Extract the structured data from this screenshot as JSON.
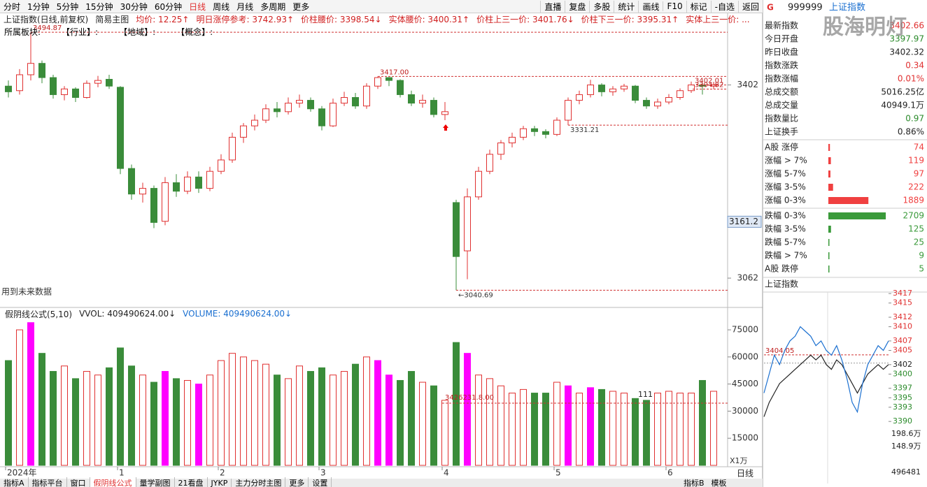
{
  "toolbar": {
    "tabs": [
      "分时",
      "1分钟",
      "5分钟",
      "15分钟",
      "30分钟",
      "60分钟",
      "日线",
      "周线",
      "月线",
      "多周期",
      "更多"
    ],
    "active_tab": 6,
    "buttons": [
      "直播",
      "复盘",
      "多股",
      "统计",
      "画线",
      "F10",
      "标记",
      "-自选",
      "返回"
    ]
  },
  "info_bar": {
    "items": [
      "上证指数(日线,前复权)",
      "简易主图",
      "均价: 12.25↑",
      "明日涨停参考: 3742.93↑",
      "价柱腰价: 3398.54↓",
      "实体腰价: 3400.31↑",
      "价柱上三一价: 3401.76↓",
      "价柱下三一价: 3395.31↑",
      "实体上三一价: ..."
    ],
    "sector": [
      "所属板块:",
      "【行业】:",
      "【地域】:",
      "【概念】:"
    ]
  },
  "future_note": "用到未来数据",
  "chart_data": [
    {
      "type": "candlestick",
      "ylim": [
        3035,
        3495
      ],
      "yticks": [
        3402,
        3062
      ],
      "crosshair": 3161.2,
      "up_color": "#e03030",
      "down_color": "#3a8c3a",
      "candles": [
        [
          3400,
          3410,
          3380,
          3390
        ],
        [
          3392,
          3430,
          3385,
          3420
        ],
        [
          3420,
          3494.87,
          3410,
          3440
        ],
        [
          3440,
          3445,
          3405,
          3415
        ],
        [
          3415,
          3420,
          3378,
          3385
        ],
        [
          3385,
          3400,
          3375,
          3395
        ],
        [
          3395,
          3398,
          3372,
          3380
        ],
        [
          3380,
          3410,
          3378,
          3405
        ],
        [
          3405,
          3418,
          3398,
          3410
        ],
        [
          3412,
          3420,
          3395,
          3400
        ],
        [
          3398,
          3400,
          3245,
          3255
        ],
        [
          3255,
          3262,
          3200,
          3210
        ],
        [
          3210,
          3230,
          3195,
          3220
        ],
        [
          3220,
          3225,
          3150,
          3160
        ],
        [
          3162,
          3240,
          3155,
          3230
        ],
        [
          3230,
          3245,
          3205,
          3215
        ],
        [
          3215,
          3250,
          3210,
          3240
        ],
        [
          3240,
          3250,
          3212,
          3220
        ],
        [
          3220,
          3258,
          3215,
          3250
        ],
        [
          3250,
          3280,
          3245,
          3270
        ],
        [
          3270,
          3318,
          3265,
          3310
        ],
        [
          3310,
          3335,
          3300,
          3330
        ],
        [
          3330,
          3350,
          3322,
          3340
        ],
        [
          3340,
          3368,
          3335,
          3360
        ],
        [
          3360,
          3372,
          3345,
          3355
        ],
        [
          3355,
          3380,
          3350,
          3370
        ],
        [
          3370,
          3385,
          3362,
          3375
        ],
        [
          3375,
          3380,
          3355,
          3360
        ],
        [
          3360,
          3365,
          3322,
          3330
        ],
        [
          3330,
          3378,
          3328,
          3370
        ],
        [
          3370,
          3390,
          3365,
          3380
        ],
        [
          3380,
          3388,
          3360,
          3365
        ],
        [
          3365,
          3405,
          3360,
          3400
        ],
        [
          3400,
          3417,
          3395,
          3415
        ],
        [
          3415,
          3416,
          3400,
          3410
        ],
        [
          3410,
          3412,
          3380,
          3385
        ],
        [
          3385,
          3392,
          3365,
          3370
        ],
        [
          3370,
          3385,
          3362,
          3375
        ],
        [
          3375,
          3380,
          3345,
          3350
        ],
        [
          3350,
          3372,
          3340,
          3355
        ],
        [
          3195,
          3200,
          3040.69,
          3100
        ],
        [
          3110,
          3220,
          3060,
          3205
        ],
        [
          3205,
          3258,
          3200,
          3250
        ],
        [
          3250,
          3288,
          3245,
          3280
        ],
        [
          3280,
          3305,
          3270,
          3300
        ],
        [
          3300,
          3318,
          3292,
          3310
        ],
        [
          3310,
          3330,
          3305,
          3325
        ],
        [
          3325,
          3330,
          3312,
          3320
        ],
        [
          3320,
          3324,
          3308,
          3315
        ],
        [
          3315,
          3345,
          3312,
          3340
        ],
        [
          3340,
          3380,
          3331.21,
          3375
        ],
        [
          3375,
          3392,
          3368,
          3385
        ],
        [
          3385,
          3411,
          3380,
          3402
        ],
        [
          3402,
          3405,
          3382,
          3390
        ],
        [
          3390,
          3400,
          3383,
          3395
        ],
        [
          3395,
          3404,
          3390,
          3400
        ],
        [
          3400,
          3402,
          3370,
          3375
        ],
        [
          3375,
          3380,
          3360,
          3365
        ],
        [
          3365,
          3378,
          3360,
          3372
        ],
        [
          3372,
          3386,
          3368,
          3380
        ],
        [
          3380,
          3396,
          3376,
          3392
        ],
        [
          3392,
          3408,
          3388,
          3402
        ],
        [
          3402,
          3406,
          3385,
          3400
        ],
        [
          3400,
          3406.5,
          3395,
          3402.66
        ]
      ],
      "annotations": [
        {
          "value": 3494.87,
          "label": "3494.87"
        },
        {
          "value": 3417,
          "label": "3417.00"
        },
        {
          "value": 3402.01,
          "label": "3402.01"
        },
        {
          "value": 3394.82,
          "label": "3394.82"
        },
        {
          "value": 3331.21,
          "label": "3331.21"
        },
        {
          "value": 3040.69,
          "label": "←3040.69"
        }
      ]
    },
    {
      "type": "bar",
      "legend": [
        "假阴线公式(5,10)",
        "VVOL: 409490624.00↓",
        "VOLUME: 409490624.00↓"
      ],
      "legend_colors": [
        "#222222",
        "#222222",
        "#1a6fd0"
      ],
      "ylim": [
        0,
        87400
      ],
      "yticks": [
        75000,
        60000,
        45000,
        30000,
        15000
      ],
      "unit": "X1万",
      "highlight": [
        2,
        14,
        17,
        33,
        34,
        41,
        50,
        52
      ],
      "highlight_color": "#ff00ff",
      "notes": [
        "3426231.8.00",
        "111"
      ],
      "values": [
        58000,
        75000,
        79000,
        62000,
        52000,
        55000,
        48000,
        52000,
        50000,
        54000,
        65000,
        55000,
        50000,
        46000,
        52000,
        48000,
        47000,
        45000,
        50000,
        58000,
        62000,
        60000,
        58000,
        56000,
        50000,
        48000,
        55000,
        52000,
        54000,
        50000,
        52000,
        56000,
        60000,
        58000,
        50000,
        47000,
        52000,
        46000,
        44000,
        36000,
        68000,
        62000,
        50000,
        48000,
        44000,
        40000,
        42000,
        40000,
        40000,
        46000,
        44000,
        40000,
        43000,
        42000,
        41000,
        40000,
        37000,
        36000,
        40000,
        41000,
        40000,
        40000,
        47000,
        41000
      ],
      "categories": [
        "2024年",
        null,
        null,
        null,
        null,
        null,
        null,
        null,
        null,
        null,
        "1",
        null,
        null,
        null,
        null,
        null,
        null,
        null,
        null,
        "2",
        null,
        null,
        null,
        null,
        null,
        null,
        null,
        null,
        "3",
        null,
        null,
        null,
        null,
        null,
        null,
        null,
        null,
        null,
        null,
        "4",
        null,
        null,
        null,
        null,
        null,
        null,
        null,
        null,
        null,
        "5",
        null,
        null,
        null,
        null,
        null,
        null,
        null,
        null,
        null,
        "6",
        null,
        null,
        null,
        null
      ]
    },
    {
      "type": "line",
      "title": "上证指数",
      "ylim": [
        3388.7,
        3418.2
      ],
      "yticks": [
        3417,
        3415,
        3412,
        3410,
        3407,
        3405,
        3402,
        3400,
        3397,
        3395,
        3393,
        3390
      ],
      "volume_labels": [
        "198.6万",
        "148.9万",
        "496481"
      ],
      "annotations": [
        {
          "value": 3404.05,
          "label": "3404.05"
        }
      ],
      "series": [
        {
          "color": "#222222",
          "values": [
            3391,
            3394,
            3396,
            3398,
            3399,
            3400,
            3401,
            3402,
            3403,
            3404,
            3403,
            3404,
            3402,
            3401,
            3403,
            3402,
            3400,
            3398,
            3396,
            3398,
            3400,
            3401,
            3402,
            3401,
            3402
          ]
        },
        {
          "color": "#1a6fd0",
          "values": [
            3396,
            3400,
            3404,
            3402,
            3405,
            3407,
            3408,
            3410,
            3409,
            3408,
            3406,
            3407,
            3405,
            3404,
            3406,
            3403,
            3399,
            3394,
            3392,
            3398,
            3402,
            3404,
            3406,
            3405,
            3407
          ]
        }
      ]
    }
  ],
  "right_panel": {
    "badge": "G",
    "code": "999999",
    "name": "上证指数",
    "watermark": "股海明灯",
    "stats": [
      {
        "label": "最新指数",
        "value": "3402.66",
        "color": "#e03030"
      },
      {
        "label": "今日开盘",
        "value": "3397.97",
        "color": "#2a8a2a"
      },
      {
        "label": "昨日收盘",
        "value": "3402.32",
        "color": "#222222"
      },
      {
        "label": "指数涨跌",
        "value": "0.34",
        "color": "#e03030"
      },
      {
        "label": "指数涨幅",
        "value": "0.01%",
        "color": "#e03030"
      },
      {
        "label": "总成交额",
        "value": "5016.25亿",
        "color": "#222222"
      },
      {
        "label": "总成交量",
        "value": "40949.1万",
        "color": "#222222"
      },
      {
        "label": "指数量比",
        "value": "0.97",
        "color": "#2a8a2a"
      },
      {
        "label": "上证换手",
        "value": "0.86%",
        "color": "#222222"
      }
    ],
    "up_color": "#f04040",
    "down_color": "#3a9a3a",
    "up": [
      {
        "label": "A股 涨停",
        "value": 74
      },
      {
        "label": "涨幅 > 7%",
        "value": 119
      },
      {
        "label": "涨幅 5-7%",
        "value": 97
      },
      {
        "label": "涨幅 3-5%",
        "value": 222
      },
      {
        "label": "涨幅 0-3%",
        "value": 1889
      }
    ],
    "down": [
      {
        "label": "跌幅 0-3%",
        "value": 2709
      },
      {
        "label": "跌幅 3-5%",
        "value": 125
      },
      {
        "label": "跌幅 5-7%",
        "value": 25
      },
      {
        "label": "跌幅 > 7%",
        "value": 9
      },
      {
        "label": "A股 跌停",
        "value": 5
      }
    ]
  },
  "bottom_tabs": {
    "tabs": [
      "指标A",
      "指标平台",
      "窗口",
      "假阴线公式",
      "量学副图",
      "21看盘",
      "JYKP",
      "主力分时主图",
      "更多",
      "设置"
    ],
    "active_tab": 3,
    "right": [
      "指标B",
      "模板"
    ],
    "period": "日线"
  }
}
